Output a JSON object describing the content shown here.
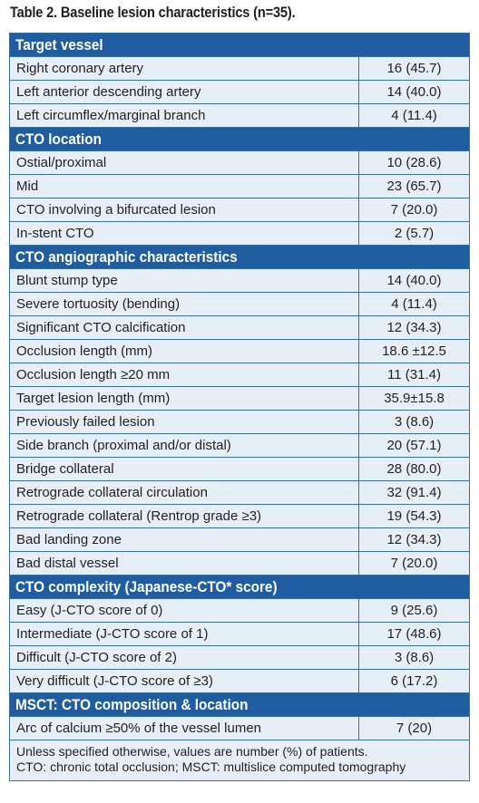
{
  "caption": "Table 2. Baseline lesion characteristics (n=35).",
  "sections": [
    {
      "title": "Target vessel",
      "rows": [
        {
          "label": "Right coronary artery",
          "value": "16 (45.7)"
        },
        {
          "label": "Left anterior descending artery",
          "value": "14 (40.0)"
        },
        {
          "label": "Left circumflex/marginal branch",
          "value": "4 (11.4)"
        }
      ]
    },
    {
      "title": "CTO location",
      "rows": [
        {
          "label": "Ostial/proximal",
          "value": "10 (28.6)"
        },
        {
          "label": "Mid",
          "value": "23 (65.7)"
        },
        {
          "label": "CTO involving a bifurcated lesion",
          "value": "7 (20.0)"
        },
        {
          "label": "In-stent CTO",
          "value": "2 (5.7)"
        }
      ]
    },
    {
      "title": "CTO angiographic characteristics",
      "rows": [
        {
          "label": "Blunt stump type",
          "value": "14 (40.0)"
        },
        {
          "label": "Severe tortuosity (bending)",
          "value": "4 (11.4)"
        },
        {
          "label": "Significant CTO calcification",
          "value": "12 (34.3)"
        },
        {
          "label": "Occlusion length (mm)",
          "value": "18.6 ±12.5"
        },
        {
          "label": "Occlusion length ≥20 mm",
          "value": "11 (31.4)"
        },
        {
          "label": "Target lesion length (mm)",
          "value": "35.9±15.8"
        },
        {
          "label": "Previously failed lesion",
          "value": "3 (8.6)"
        },
        {
          "label": "Side branch (proximal and/or distal)",
          "value": "20 (57.1)"
        },
        {
          "label": "Bridge collateral",
          "value": "28 (80.0)"
        },
        {
          "label": "Retrograde collateral circulation",
          "value": "32 (91.4)"
        },
        {
          "label": "Retrograde collateral (Rentrop grade ≥3)",
          "value": "19 (54.3)"
        },
        {
          "label": "Bad landing zone",
          "value": "12 (34.3)"
        },
        {
          "label": "Bad distal vessel",
          "value": "7 (20.0)"
        }
      ]
    },
    {
      "title": "CTO complexity (Japanese-CTO* score)",
      "rows": [
        {
          "label": "Easy (J-CTO score of 0)",
          "value": "9 (25.6)"
        },
        {
          "label": "Intermediate (J-CTO score of 1)",
          "value": "17 (48.6)"
        },
        {
          "label": "Difficult (J-CTO score of 2)",
          "value": "3 (8.6)"
        },
        {
          "label": "Very difficult (J-CTO score of ≥3)",
          "value": "6 (17.2)"
        }
      ]
    },
    {
      "title": "MSCT: CTO composition & location",
      "rows": [
        {
          "label": "Arc of calcium ≥50% of the vessel lumen",
          "value": "7 (20)"
        }
      ]
    }
  ],
  "footnote": {
    "line1": "Unless specified otherwise, values are number (%) of patients.",
    "line2": "CTO: chronic total occlusion; MSCT: multislice computed tomography"
  },
  "colors": {
    "header_bg": "#1f5da0",
    "row_bg": "#e6eef8",
    "border": "#3a6ea5"
  }
}
